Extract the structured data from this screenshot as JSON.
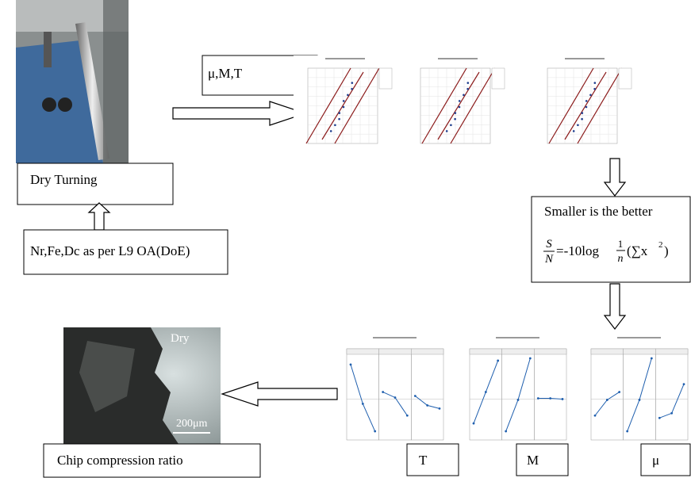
{
  "photo_label": "Dry Turning",
  "inputs": "Nr,Fe,Dc  as per L9 OA(DoE)",
  "responses": "μ,M,T",
  "criterion": {
    "title": "Smaller is the better",
    "formula": {
      "numerator": "S",
      "denominator": "N",
      "expression": "=-10log",
      "fraction_numerator": "1",
      "fraction_denominator": "n",
      "tail": "(∑x",
      "exponent": "2",
      "close": ")"
    }
  },
  "chip_photo": {
    "tag": "Dry",
    "scale": "200μm"
  },
  "chip_label": "Chip compression ratio",
  "plot_labels": [
    "T",
    "M",
    "μ"
  ]
}
